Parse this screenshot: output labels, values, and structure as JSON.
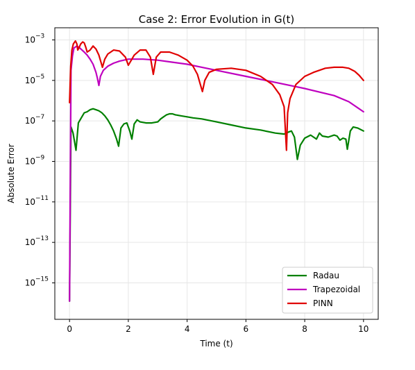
{
  "chart_data": {
    "type": "line",
    "title": "Case 2: Error Evolution in G(t)",
    "xlabel": "Time (t)",
    "ylabel": "Absolute Error",
    "xlim": [
      -0.5,
      10.5
    ],
    "ylim_log10": [
      -16.8,
      -2.4
    ],
    "yscale": "log",
    "x_ticks": [
      0,
      2,
      4,
      6,
      8,
      10
    ],
    "x_tick_labels": [
      "0",
      "2",
      "4",
      "6",
      "8",
      "10"
    ],
    "y_ticks_log10": [
      -15,
      -13,
      -11,
      -9,
      -7,
      -5,
      -3
    ],
    "y_tick_labels": [
      "10",
      "10",
      "10",
      "10",
      "10",
      "10",
      "10"
    ],
    "y_tick_exponents": [
      "−15",
      "−13",
      "−11",
      "−9",
      "−7",
      "−5",
      "−3"
    ],
    "grid": true,
    "legend_position": "lower-right",
    "series": [
      {
        "name": "Radau",
        "color": "#008000",
        "x": [
          0.0,
          0.05,
          0.12,
          0.22,
          0.3,
          0.4,
          0.5,
          0.6,
          0.7,
          0.8,
          0.9,
          1.0,
          1.1,
          1.2,
          1.3,
          1.4,
          1.5,
          1.6,
          1.67,
          1.75,
          1.85,
          1.95,
          2.05,
          2.12,
          2.2,
          2.3,
          2.4,
          2.6,
          2.8,
          3.0,
          3.1,
          3.2,
          3.3,
          3.4,
          3.5,
          3.6,
          3.8,
          4.0,
          4.2,
          4.5,
          5.0,
          5.5,
          6.0,
          6.5,
          7.0,
          7.3,
          7.45,
          7.55,
          7.65,
          7.75,
          7.85,
          8.0,
          8.2,
          8.4,
          8.5,
          8.6,
          8.8,
          9.0,
          9.1,
          9.2,
          9.3,
          9.4,
          9.45,
          9.55,
          9.65,
          9.8,
          10.0
        ],
        "log10_y": [
          -15.9,
          -7.3,
          -7.6,
          -8.45,
          -7.1,
          -6.85,
          -6.6,
          -6.55,
          -6.45,
          -6.4,
          -6.45,
          -6.5,
          -6.6,
          -6.75,
          -6.95,
          -7.2,
          -7.5,
          -7.9,
          -8.25,
          -7.35,
          -7.15,
          -7.1,
          -7.5,
          -7.9,
          -7.15,
          -6.95,
          -7.05,
          -7.1,
          -7.1,
          -7.05,
          -6.9,
          -6.8,
          -6.7,
          -6.65,
          -6.65,
          -6.7,
          -6.75,
          -6.8,
          -6.85,
          -6.9,
          -7.05,
          -7.2,
          -7.35,
          -7.45,
          -7.6,
          -7.65,
          -7.55,
          -7.5,
          -7.8,
          -8.9,
          -8.2,
          -7.85,
          -7.7,
          -7.9,
          -7.6,
          -7.75,
          -7.8,
          -7.7,
          -7.75,
          -7.95,
          -7.85,
          -7.9,
          -8.4,
          -7.5,
          -7.3,
          -7.35,
          -7.5
        ]
      },
      {
        "name": "Trapezoidal",
        "color": "#bf00bf",
        "x": [
          0.0,
          0.05,
          0.1,
          0.15,
          0.25,
          0.35,
          0.5,
          0.6,
          0.7,
          0.8,
          0.9,
          0.95,
          1.0,
          1.05,
          1.15,
          1.3,
          1.5,
          1.7,
          2.0,
          2.5,
          3.0,
          3.5,
          4.0,
          4.5,
          5.0,
          6.0,
          7.0,
          8.0,
          9.0,
          9.5,
          9.8,
          10.0
        ],
        "log10_y": [
          -15.9,
          -4.5,
          -3.8,
          -3.4,
          -3.3,
          -3.4,
          -3.6,
          -3.75,
          -3.95,
          -4.2,
          -4.6,
          -4.9,
          -5.25,
          -4.8,
          -4.5,
          -4.3,
          -4.15,
          -4.05,
          -3.95,
          -3.95,
          -4.0,
          -4.1,
          -4.2,
          -4.35,
          -4.5,
          -4.8,
          -5.1,
          -5.4,
          -5.75,
          -6.05,
          -6.35,
          -6.55
        ]
      },
      {
        "name": "PINN",
        "color": "#e00000",
        "x": [
          0.0,
          0.04,
          0.08,
          0.13,
          0.2,
          0.25,
          0.28,
          0.32,
          0.38,
          0.45,
          0.5,
          0.55,
          0.6,
          0.7,
          0.8,
          0.9,
          1.0,
          1.08,
          1.12,
          1.2,
          1.3,
          1.5,
          1.7,
          1.9,
          2.0,
          2.2,
          2.4,
          2.6,
          2.75,
          2.85,
          2.95,
          3.1,
          3.4,
          3.7,
          4.0,
          4.2,
          4.35,
          4.45,
          4.52,
          4.6,
          4.75,
          5.0,
          5.5,
          6.0,
          6.5,
          6.9,
          7.15,
          7.3,
          7.38,
          7.42,
          7.5,
          7.7,
          8.0,
          8.3,
          8.7,
          9.0,
          9.3,
          9.5,
          9.7,
          9.85,
          10.0
        ],
        "log10_y": [
          -6.1,
          -4.3,
          -3.5,
          -3.2,
          -3.05,
          -3.2,
          -3.5,
          -3.4,
          -3.2,
          -3.1,
          -3.15,
          -3.35,
          -3.6,
          -3.5,
          -3.3,
          -3.45,
          -3.75,
          -4.15,
          -4.35,
          -3.95,
          -3.7,
          -3.5,
          -3.55,
          -3.85,
          -4.25,
          -3.75,
          -3.5,
          -3.5,
          -3.85,
          -4.7,
          -3.85,
          -3.6,
          -3.6,
          -3.75,
          -4.0,
          -4.3,
          -4.7,
          -5.2,
          -5.55,
          -5.0,
          -4.6,
          -4.45,
          -4.4,
          -4.5,
          -4.8,
          -5.2,
          -5.7,
          -6.3,
          -8.45,
          -6.6,
          -5.9,
          -5.2,
          -4.8,
          -4.6,
          -4.4,
          -4.35,
          -4.35,
          -4.4,
          -4.55,
          -4.75,
          -5.0
        ]
      }
    ]
  }
}
